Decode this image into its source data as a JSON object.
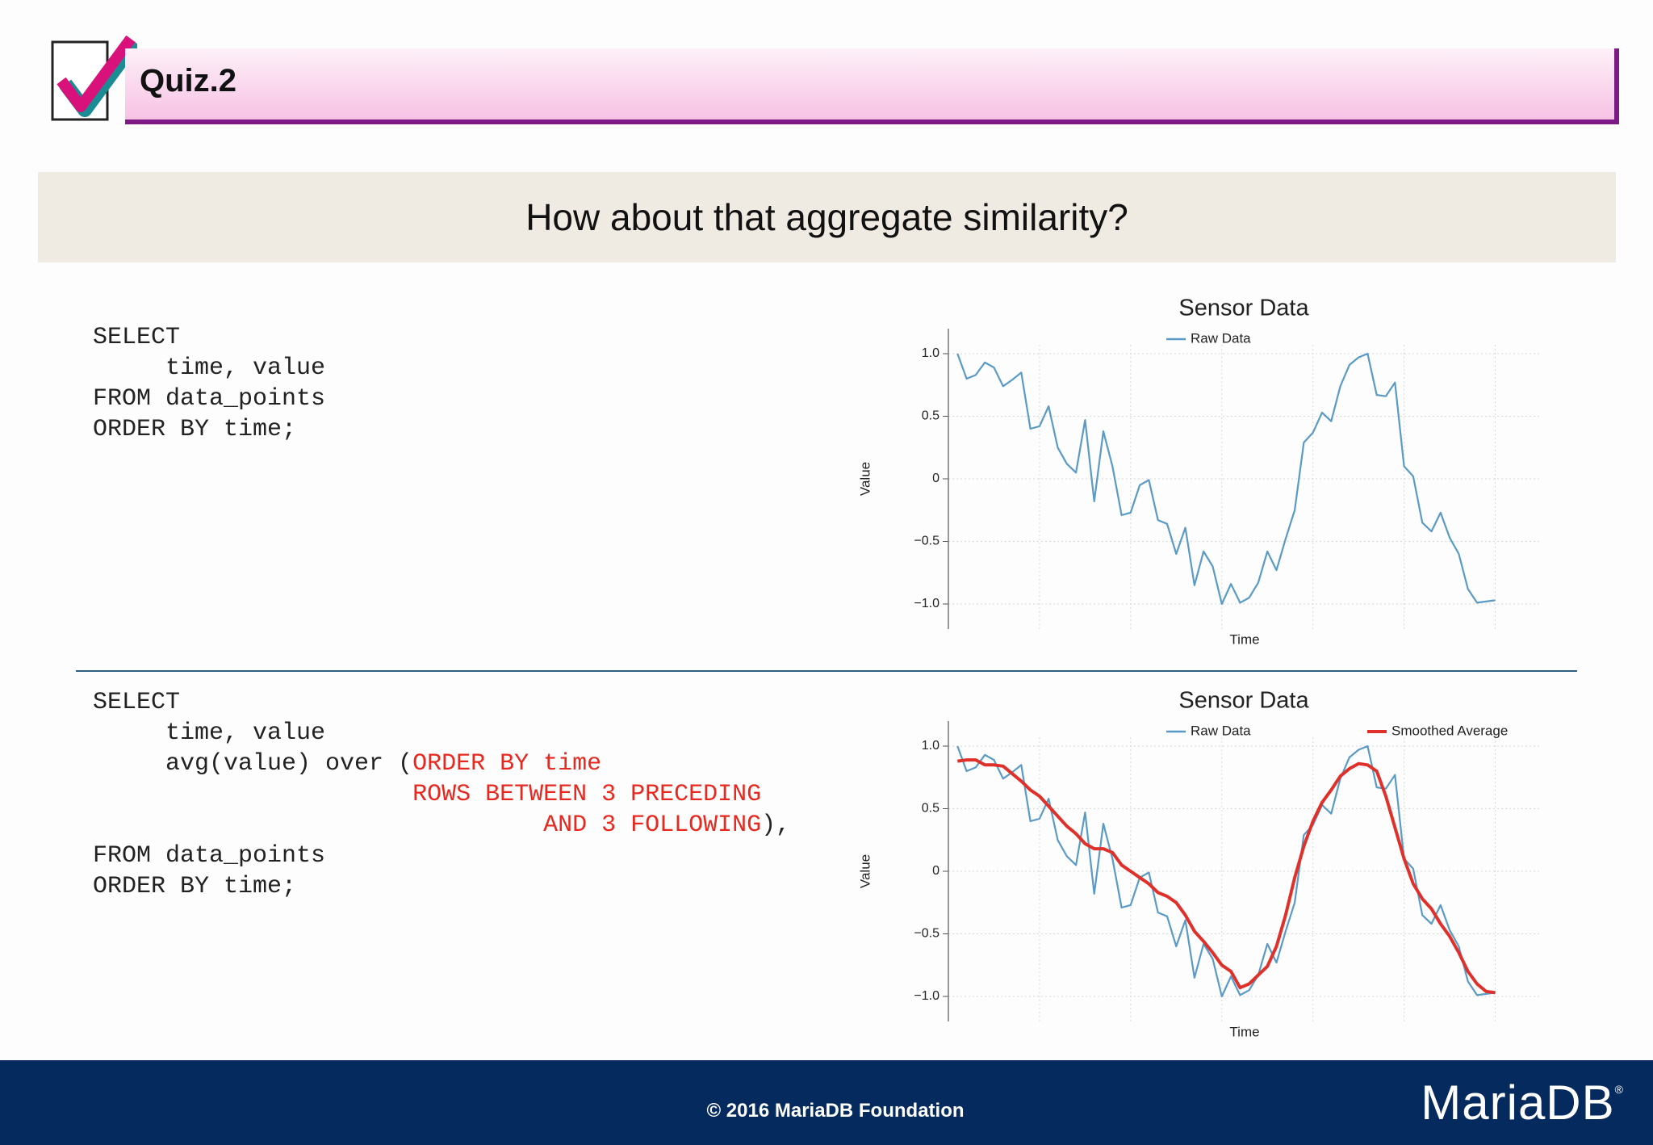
{
  "header": {
    "title": "Quiz.2"
  },
  "banner": {
    "text": "How about that aggregate similarity?"
  },
  "code_blocks": [
    {
      "lines": [
        [
          {
            "text": "SELECT"
          }
        ],
        [
          {
            "text": "     time, value"
          }
        ],
        [
          {
            "text": "FROM data_points"
          }
        ],
        [
          {
            "text": "ORDER BY time;"
          }
        ]
      ]
    },
    {
      "lines": [
        [
          {
            "text": "SELECT"
          }
        ],
        [
          {
            "text": "     time, value"
          }
        ],
        [
          {
            "text": "     avg(value) over ("
          },
          {
            "text": "ORDER BY time",
            "color": "#e8281e"
          }
        ],
        [
          {
            "text": "                      ROWS BETWEEN 3 PRECEDING",
            "color": "#e8281e"
          }
        ],
        [
          {
            "text": "                               AND 3 FOLLOWING",
            "color": "#e8281e"
          },
          {
            "text": "),"
          }
        ],
        [
          {
            "text": "FROM data_points"
          }
        ],
        [
          {
            "text": "ORDER BY time;"
          }
        ]
      ]
    }
  ],
  "chart_data": [
    {
      "type": "line",
      "title": "Sensor Data",
      "x_label": "Time",
      "y_label": "Value",
      "x": [
        1,
        2,
        3,
        4,
        5,
        6,
        7,
        8,
        9,
        10,
        11,
        12,
        13,
        14,
        15,
        16,
        17,
        18,
        19,
        20,
        21,
        22,
        23,
        24,
        25,
        26,
        27,
        28,
        29,
        30,
        31,
        32,
        33,
        34,
        35,
        36,
        37,
        38,
        39,
        40,
        41,
        42,
        43,
        44,
        45,
        46,
        47,
        48,
        49,
        50,
        51,
        52,
        53,
        54,
        55,
        56,
        57,
        58,
        59,
        60
      ],
      "xlim": [
        0,
        65
      ],
      "xticks": [
        0,
        10,
        20,
        30,
        40,
        50,
        60
      ],
      "ylim": [
        -1.2,
        1.2
      ],
      "yticks": [
        {
          "value": -1,
          "label": "−1.0"
        },
        {
          "value": -0.5,
          "label": "−0.5"
        },
        0,
        0.5,
        {
          "value": 1,
          "label": "1.0"
        }
      ],
      "grid": true,
      "series": [
        {
          "name": "Raw Data",
          "color": "#5a9ac6",
          "values": [
            1.0,
            0.8,
            0.83,
            0.93,
            0.89,
            0.74,
            0.79,
            0.85,
            0.4,
            0.42,
            0.58,
            0.25,
            0.12,
            0.05,
            0.47,
            -0.18,
            0.38,
            0.1,
            -0.29,
            -0.27,
            -0.05,
            -0.01,
            -0.33,
            -0.36,
            -0.6,
            -0.39,
            -0.85,
            -0.58,
            -0.7,
            -1.0,
            -0.84,
            -0.99,
            -0.95,
            -0.83,
            -0.58,
            -0.73,
            -0.48,
            -0.25,
            0.29,
            0.37,
            0.53,
            0.46,
            0.74,
            0.91,
            0.97,
            1.0,
            0.67,
            0.66,
            0.77,
            0.1,
            0.02,
            -0.35,
            -0.42,
            -0.27,
            -0.47,
            -0.6,
            -0.88,
            -0.99,
            -0.98,
            -0.97
          ]
        }
      ]
    },
    {
      "type": "line",
      "title": "Sensor Data",
      "x_label": "Time",
      "y_label": "Value",
      "x": [
        1,
        2,
        3,
        4,
        5,
        6,
        7,
        8,
        9,
        10,
        11,
        12,
        13,
        14,
        15,
        16,
        17,
        18,
        19,
        20,
        21,
        22,
        23,
        24,
        25,
        26,
        27,
        28,
        29,
        30,
        31,
        32,
        33,
        34,
        35,
        36,
        37,
        38,
        39,
        40,
        41,
        42,
        43,
        44,
        45,
        46,
        47,
        48,
        49,
        50,
        51,
        52,
        53,
        54,
        55,
        56,
        57,
        58,
        59,
        60
      ],
      "xlim": [
        0,
        65
      ],
      "xticks": [
        0,
        10,
        20,
        30,
        40,
        50,
        60
      ],
      "ylim": [
        -1.2,
        1.2
      ],
      "yticks": [
        {
          "value": -1,
          "label": "−1.0"
        },
        {
          "value": -0.5,
          "label": "−0.5"
        },
        0,
        0.5,
        {
          "value": 1,
          "label": "1.0"
        }
      ],
      "grid": true,
      "series": [
        {
          "name": "Raw Data",
          "color": "#5a9ac6",
          "values": [
            1.0,
            0.8,
            0.83,
            0.93,
            0.89,
            0.74,
            0.79,
            0.85,
            0.4,
            0.42,
            0.58,
            0.25,
            0.12,
            0.05,
            0.47,
            -0.18,
            0.38,
            0.1,
            -0.29,
            -0.27,
            -0.05,
            -0.01,
            -0.33,
            -0.36,
            -0.6,
            -0.39,
            -0.85,
            -0.58,
            -0.7,
            -1.0,
            -0.84,
            -0.99,
            -0.95,
            -0.83,
            -0.58,
            -0.73,
            -0.48,
            -0.25,
            0.29,
            0.37,
            0.53,
            0.46,
            0.74,
            0.91,
            0.97,
            1.0,
            0.67,
            0.66,
            0.77,
            0.1,
            0.02,
            -0.35,
            -0.42,
            -0.27,
            -0.47,
            -0.6,
            -0.88,
            -0.99,
            -0.98,
            -0.97
          ]
        },
        {
          "name": "Smoothed Average",
          "color": "#e0302a",
          "values": [
            0.88,
            0.89,
            0.89,
            0.85,
            0.85,
            0.84,
            0.78,
            0.72,
            0.65,
            0.6,
            0.52,
            0.44,
            0.36,
            0.3,
            0.22,
            0.18,
            0.18,
            0.15,
            0.05,
            0.0,
            -0.05,
            -0.1,
            -0.17,
            -0.2,
            -0.25,
            -0.35,
            -0.48,
            -0.56,
            -0.65,
            -0.75,
            -0.8,
            -0.93,
            -0.9,
            -0.83,
            -0.76,
            -0.6,
            -0.35,
            -0.05,
            0.2,
            0.4,
            0.55,
            0.65,
            0.76,
            0.82,
            0.86,
            0.85,
            0.8,
            0.6,
            0.35,
            0.1,
            -0.1,
            -0.22,
            -0.3,
            -0.42,
            -0.52,
            -0.65,
            -0.8,
            -0.9,
            -0.96,
            -0.97
          ]
        }
      ]
    }
  ],
  "footer": {
    "text": "© 2016 MariaDB Foundation",
    "logo": "MariaDB",
    "logo_mark": "®"
  }
}
